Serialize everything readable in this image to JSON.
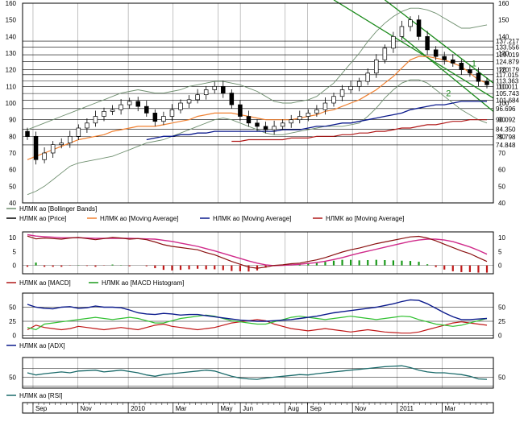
{
  "chart_data": [
    {
      "type": "candlestick",
      "title": "",
      "instrument": "НЛМК ао",
      "y_ticks": [
        40,
        50,
        60,
        70,
        80,
        90,
        100,
        110,
        120,
        130,
        140,
        150,
        160
      ],
      "ylim": [
        40,
        160
      ],
      "price_level_labels": [
        "137.217",
        "133.556",
        "129.019",
        "124.879",
        "120.179",
        "117.015",
        "113.363",
        "110.011",
        "105.743",
        "101.684",
        "96.696",
        "90.092",
        "84.350",
        "79.798",
        "74.848"
      ],
      "trend_channel_labels": [
        "1",
        "2"
      ],
      "legend": [
        {
          "label": "НЛМК ао [Bollinger Bands]",
          "color": "#6f8f6f"
        },
        {
          "label": "НЛМК ао [Price]",
          "color": "#000000"
        },
        {
          "label": "НЛМК ао [Moving Average]",
          "color": "#f08030"
        },
        {
          "label": "НЛМК ао [Moving Average]",
          "color": "#0b1a8c"
        },
        {
          "label": "НЛМК ао [Moving Average]",
          "color": "#b01818"
        }
      ],
      "colors": {
        "up": "#ffffff",
        "down": "#000000",
        "channel": "#1a8a1a"
      },
      "weekly_close": [
        80,
        66,
        70,
        75,
        76,
        80,
        85,
        88,
        92,
        95,
        96,
        99,
        101,
        98,
        94,
        89,
        92,
        96,
        100,
        102,
        105,
        108,
        110,
        106,
        99,
        92,
        88,
        86,
        84,
        86,
        88,
        90,
        92,
        94,
        96,
        100,
        104,
        108,
        110,
        113,
        118,
        126,
        133,
        140,
        146,
        150,
        140,
        132,
        128,
        126,
        124,
        120,
        118,
        113,
        111
      ],
      "ma_fast": [
        66,
        68,
        70,
        72,
        74,
        76,
        78,
        79,
        80,
        81,
        83,
        84,
        85,
        86,
        86,
        86,
        87,
        88,
        89,
        90,
        92,
        93,
        94,
        94,
        94,
        93,
        92,
        91,
        90,
        90,
        90,
        90,
        91,
        92,
        93,
        95,
        96,
        98,
        100,
        102,
        105,
        108,
        112,
        116,
        121,
        126,
        128,
        128,
        127,
        126,
        124,
        122,
        118,
        114,
        112
      ],
      "ma_mid": [
        null,
        null,
        null,
        null,
        null,
        null,
        null,
        null,
        null,
        null,
        null,
        null,
        null,
        null,
        78,
        79,
        80,
        80,
        81,
        81,
        82,
        82,
        83,
        83,
        83,
        83,
        83,
        83,
        83,
        83,
        84,
        84,
        84,
        85,
        86,
        86,
        87,
        88,
        88,
        89,
        90,
        91,
        92,
        93,
        94,
        96,
        97,
        98,
        99,
        99,
        100,
        101,
        101,
        101,
        101
      ],
      "ma_slow": [
        null,
        null,
        null,
        null,
        null,
        null,
        null,
        null,
        null,
        null,
        null,
        null,
        null,
        null,
        null,
        null,
        null,
        null,
        null,
        null,
        null,
        null,
        null,
        null,
        77,
        77,
        78,
        78,
        78,
        78,
        78,
        79,
        79,
        79,
        80,
        80,
        80,
        81,
        81,
        82,
        82,
        83,
        83,
        84,
        85,
        85,
        86,
        87,
        87,
        88,
        89,
        89,
        90,
        90,
        90
      ],
      "bb_upper": [
        84,
        86,
        88,
        90,
        92,
        94,
        96,
        98,
        100,
        102,
        104,
        106,
        107,
        108,
        107,
        106,
        106,
        107,
        108,
        110,
        111,
        112,
        113,
        113,
        112,
        111,
        109,
        107,
        104,
        101,
        100,
        100,
        101,
        102,
        104,
        108,
        112,
        118,
        124,
        130,
        137,
        143,
        148,
        152,
        155,
        157,
        157,
        156,
        154,
        151,
        148,
        145,
        145,
        146,
        147
      ],
      "bb_lower": [
        45,
        47,
        50,
        54,
        58,
        62,
        64,
        65,
        66,
        67,
        68,
        70,
        72,
        74,
        76,
        77,
        78,
        80,
        82,
        84,
        86,
        88,
        90,
        91,
        90,
        88,
        86,
        84,
        82,
        81,
        81,
        82,
        83,
        84,
        85,
        86,
        86,
        86,
        87,
        88,
        92,
        97,
        103,
        108,
        112,
        114,
        114,
        112,
        108,
        104,
        100,
        96,
        93,
        90,
        88
      ]
    },
    {
      "type": "line",
      "y_ticks": [
        0,
        5,
        10
      ],
      "ylim": [
        -3,
        12
      ],
      "legend": [
        {
          "label": "НЛМК ао [MACD]",
          "color": "#b01818"
        },
        {
          "label": "НЛМК ао [MACD Histogram]",
          "color": "#1a9a1a"
        }
      ],
      "series": [
        {
          "name": "НЛМК ао [MACD]",
          "values": [
            10.5,
            9.5,
            9.8,
            9.6,
            9.4,
            9.8,
            10.0,
            9.6,
            9.2,
            9.6,
            10.0,
            9.8,
            9.4,
            9.6,
            9.2,
            8.4,
            7.4,
            6.8,
            6.4,
            6.0,
            5.6,
            4.6,
            3.8,
            2.6,
            1.4,
            0.4,
            -0.6,
            -1.0,
            -0.6,
            0.0,
            0.2,
            0.6,
            0.8,
            1.4,
            2.0,
            2.8,
            3.8,
            4.8,
            5.6,
            6.2,
            7.0,
            7.8,
            8.4,
            9.0,
            9.6,
            10.2,
            10.4,
            9.8,
            8.8,
            7.6,
            6.4,
            5.2,
            4.2,
            2.8,
            1.4
          ]
        },
        {
          "name": "signal",
          "values": [
            11.0,
            10.5,
            10.3,
            10.1,
            9.9,
            9.9,
            9.9,
            9.8,
            9.7,
            9.7,
            9.7,
            9.7,
            9.7,
            9.6,
            9.5,
            9.4,
            9.0,
            8.6,
            8.0,
            7.4,
            6.8,
            6.0,
            5.2,
            4.3,
            3.4,
            2.5,
            1.6,
            0.8,
            0.2,
            -0.1,
            0.0,
            0.2,
            0.4,
            0.7,
            1.0,
            1.5,
            2.1,
            2.8,
            3.6,
            4.4,
            5.1,
            5.8,
            6.5,
            7.2,
            7.9,
            8.6,
            9.1,
            9.4,
            9.4,
            9.1,
            8.5,
            7.6,
            6.6,
            5.4,
            4.0
          ]
        }
      ],
      "histogram": [
        -0.5,
        1.0,
        -0.5,
        -0.5,
        -0.5,
        -0.1,
        0.1,
        -0.2,
        -0.5,
        -0.1,
        0.3,
        0.1,
        -0.3,
        0.0,
        -0.3,
        -1.0,
        -1.6,
        -1.8,
        -1.6,
        -1.4,
        -1.2,
        -1.4,
        -1.4,
        -1.7,
        -2.0,
        -2.1,
        -2.2,
        -1.8,
        -0.8,
        0.1,
        0.2,
        0.4,
        0.4,
        0.7,
        1.0,
        1.3,
        1.7,
        2.0,
        2.0,
        1.8,
        1.9,
        2.0,
        1.9,
        1.8,
        1.7,
        1.6,
        1.3,
        0.4,
        -0.6,
        -1.5,
        -2.1,
        -2.4,
        -2.4,
        -2.6,
        -2.6
      ]
    },
    {
      "type": "line",
      "y_ticks": [
        0,
        25,
        50
      ],
      "ylim": [
        -5,
        75
      ],
      "legend": [
        {
          "label": "НЛМК ао [ADX]",
          "color": "#0b1a8c"
        }
      ],
      "series": [
        {
          "name": "НЛМК ао [ADX]",
          "values": [
            55,
            50,
            48,
            47,
            50,
            51,
            48,
            49,
            52,
            50,
            50,
            49,
            45,
            40,
            38,
            37,
            39,
            38,
            36,
            37,
            37,
            35,
            33,
            31,
            29,
            27,
            26,
            25,
            25,
            26,
            27,
            28,
            30,
            32,
            34,
            37,
            40,
            42,
            44,
            46,
            48,
            50,
            53,
            56,
            60,
            63,
            62,
            56,
            48,
            40,
            33,
            28,
            28,
            29,
            30
          ]
        },
        {
          "name": "+DI",
          "values": [
            14,
            10,
            20,
            22,
            24,
            26,
            28,
            30,
            32,
            30,
            28,
            30,
            32,
            30,
            26,
            22,
            22,
            26,
            30,
            32,
            34,
            36,
            34,
            30,
            26,
            24,
            22,
            20,
            20,
            24,
            28,
            32,
            34,
            32,
            30,
            28,
            30,
            32,
            34,
            32,
            30,
            28,
            30,
            32,
            34,
            33,
            28,
            24,
            20,
            18,
            16,
            18,
            22,
            26,
            30
          ]
        },
        {
          "name": "-DI",
          "values": [
            10,
            18,
            14,
            12,
            10,
            12,
            16,
            14,
            12,
            10,
            12,
            14,
            12,
            10,
            14,
            18,
            20,
            16,
            14,
            12,
            10,
            12,
            14,
            18,
            22,
            24,
            26,
            28,
            26,
            20,
            16,
            12,
            10,
            8,
            10,
            12,
            10,
            8,
            6,
            8,
            10,
            8,
            6,
            5,
            4,
            4,
            6,
            10,
            14,
            18,
            22,
            24,
            22,
            20,
            18
          ]
        }
      ]
    },
    {
      "type": "line",
      "y_ticks": [
        50
      ],
      "ylim": [
        25,
        95
      ],
      "legend": [
        {
          "label": "НЛМК ао [RSI]",
          "color": "#1a6a6a"
        }
      ],
      "series": [
        {
          "name": "НЛМК ао [RSI]",
          "values": [
            60,
            55,
            58,
            60,
            62,
            60,
            64,
            65,
            66,
            62,
            64,
            66,
            63,
            60,
            55,
            52,
            56,
            58,
            60,
            62,
            64,
            66,
            64,
            58,
            52,
            48,
            46,
            45,
            48,
            50,
            52,
            54,
            56,
            55,
            58,
            60,
            62,
            64,
            66,
            68,
            70,
            72,
            74,
            75,
            76,
            72,
            66,
            62,
            60,
            60,
            58,
            56,
            52,
            46,
            45
          ]
        }
      ]
    }
  ],
  "x_axis": {
    "labels": [
      "Sep",
      "Nov",
      "2010",
      "Mar",
      "May",
      "Jun",
      "Aug",
      "Sep",
      "Nov",
      "2011",
      "Mar"
    ]
  }
}
